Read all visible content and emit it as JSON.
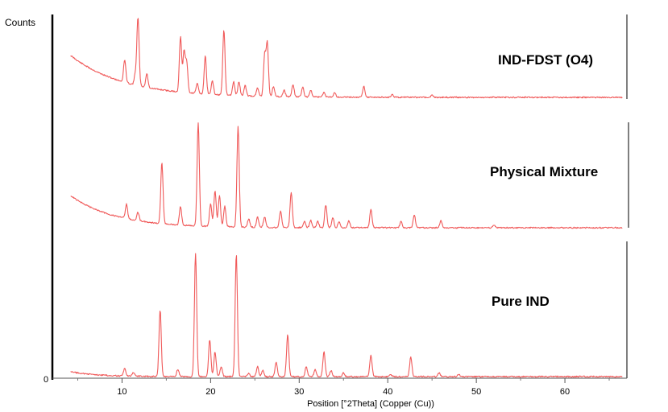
{
  "chart_data": {
    "type": "line",
    "ylabel": "Counts",
    "xlabel": "Position [°2Theta] (Copper (Cu))",
    "y_zero_label": "0",
    "xlim": [
      3.5,
      67
    ],
    "xticks": [
      10,
      20,
      30,
      40,
      50,
      60
    ],
    "colors": {
      "line": "#f05a5a",
      "axis": "#000000",
      "frame": "#555555"
    },
    "series": [
      {
        "name": "IND-FDST (O4)",
        "baseline_end": 0.97,
        "peaks": [
          {
            "x": 10.3,
            "h": 0.33
          },
          {
            "x": 11.5,
            "h": 0.15
          },
          {
            "x": 11.8,
            "h": 1.0
          },
          {
            "x": 12.8,
            "h": 0.2
          },
          {
            "x": 16.6,
            "h": 0.82
          },
          {
            "x": 17.0,
            "h": 0.6
          },
          {
            "x": 17.3,
            "h": 0.45
          },
          {
            "x": 18.5,
            "h": 0.15
          },
          {
            "x": 19.4,
            "h": 0.56
          },
          {
            "x": 20.2,
            "h": 0.2
          },
          {
            "x": 21.5,
            "h": 0.96
          },
          {
            "x": 22.6,
            "h": 0.2
          },
          {
            "x": 23.2,
            "h": 0.2
          },
          {
            "x": 23.9,
            "h": 0.15
          },
          {
            "x": 25.3,
            "h": 0.12
          },
          {
            "x": 26.1,
            "h": 0.6
          },
          {
            "x": 26.4,
            "h": 0.78
          },
          {
            "x": 27.1,
            "h": 0.15
          },
          {
            "x": 28.3,
            "h": 0.1
          },
          {
            "x": 29.3,
            "h": 0.18
          },
          {
            "x": 30.4,
            "h": 0.14
          },
          {
            "x": 31.3,
            "h": 0.1
          },
          {
            "x": 32.8,
            "h": 0.07
          },
          {
            "x": 34.0,
            "h": 0.07
          },
          {
            "x": 37.3,
            "h": 0.16
          },
          {
            "x": 40.5,
            "h": 0.04
          },
          {
            "x": 45.0,
            "h": 0.03
          }
        ]
      },
      {
        "name": "Physical Mixture",
        "baseline_end": 0.98,
        "peaks": [
          {
            "x": 10.5,
            "h": 0.14
          },
          {
            "x": 11.8,
            "h": 0.08
          },
          {
            "x": 14.5,
            "h": 0.59
          },
          {
            "x": 16.6,
            "h": 0.18
          },
          {
            "x": 18.6,
            "h": 1.0
          },
          {
            "x": 20.0,
            "h": 0.22
          },
          {
            "x": 20.5,
            "h": 0.35
          },
          {
            "x": 21.0,
            "h": 0.3
          },
          {
            "x": 21.6,
            "h": 0.2
          },
          {
            "x": 23.1,
            "h": 0.98
          },
          {
            "x": 24.3,
            "h": 0.08
          },
          {
            "x": 25.3,
            "h": 0.1
          },
          {
            "x": 26.1,
            "h": 0.1
          },
          {
            "x": 27.9,
            "h": 0.16
          },
          {
            "x": 29.1,
            "h": 0.34
          },
          {
            "x": 30.6,
            "h": 0.06
          },
          {
            "x": 31.3,
            "h": 0.07
          },
          {
            "x": 32.1,
            "h": 0.06
          },
          {
            "x": 33.0,
            "h": 0.22
          },
          {
            "x": 33.8,
            "h": 0.1
          },
          {
            "x": 34.5,
            "h": 0.06
          },
          {
            "x": 35.6,
            "h": 0.07
          },
          {
            "x": 38.1,
            "h": 0.18
          },
          {
            "x": 41.5,
            "h": 0.06
          },
          {
            "x": 43.0,
            "h": 0.12
          },
          {
            "x": 46.0,
            "h": 0.07
          },
          {
            "x": 52.0,
            "h": 0.03
          }
        ]
      },
      {
        "name": "Pure IND",
        "baseline_end": 1.0,
        "peaks": [
          {
            "x": 10.3,
            "h": 0.06
          },
          {
            "x": 11.3,
            "h": 0.03
          },
          {
            "x": 14.3,
            "h": 0.54
          },
          {
            "x": 16.3,
            "h": 0.06
          },
          {
            "x": 18.3,
            "h": 1.0
          },
          {
            "x": 19.9,
            "h": 0.3
          },
          {
            "x": 20.5,
            "h": 0.2
          },
          {
            "x": 21.2,
            "h": 0.08
          },
          {
            "x": 22.9,
            "h": 0.99
          },
          {
            "x": 24.3,
            "h": 0.03
          },
          {
            "x": 25.3,
            "h": 0.08
          },
          {
            "x": 25.9,
            "h": 0.05
          },
          {
            "x": 27.4,
            "h": 0.12
          },
          {
            "x": 28.7,
            "h": 0.34
          },
          {
            "x": 30.8,
            "h": 0.08
          },
          {
            "x": 31.8,
            "h": 0.06
          },
          {
            "x": 32.8,
            "h": 0.2
          },
          {
            "x": 33.6,
            "h": 0.05
          },
          {
            "x": 35.0,
            "h": 0.03
          },
          {
            "x": 38.1,
            "h": 0.17
          },
          {
            "x": 40.3,
            "h": 0.02
          },
          {
            "x": 42.6,
            "h": 0.16
          },
          {
            "x": 45.8,
            "h": 0.03
          },
          {
            "x": 48.0,
            "h": 0.02
          }
        ]
      }
    ]
  }
}
